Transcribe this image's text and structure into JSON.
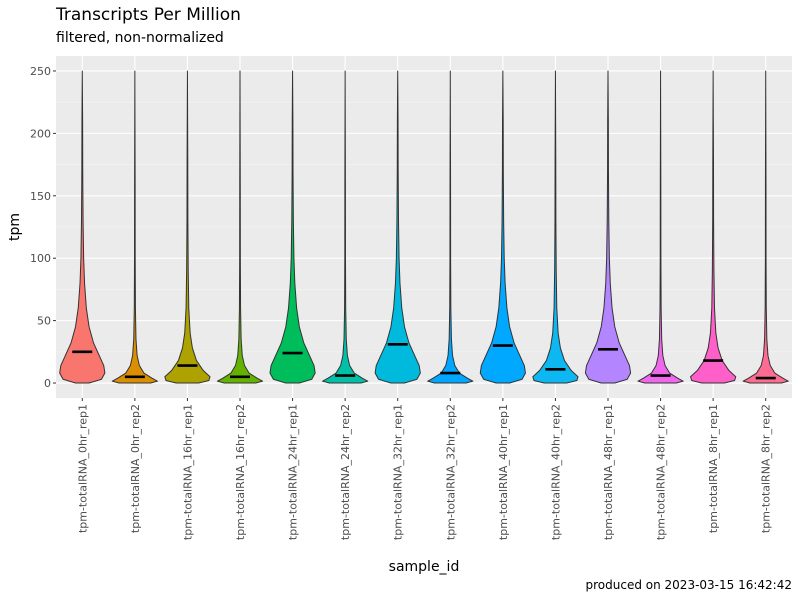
{
  "chart_data": {
    "type": "violin",
    "title": "Transcripts Per Million",
    "subtitle": "filtered, non-normalized",
    "xlabel": "sample_id",
    "ylabel": "tpm",
    "ylim": [
      -12,
      262
    ],
    "yticks": [
      0,
      50,
      100,
      150,
      200,
      250
    ],
    "grid": true,
    "legend": "none",
    "caption": "produced on 2023-03-15 16:42:42",
    "samples": [
      {
        "id": "tpm-totalRNA_0hr_rep1",
        "color": "#F8766D",
        "mean": 25,
        "max": 250,
        "shape": "wide_high"
      },
      {
        "id": "tpm-totalRNA_0hr_rep2",
        "color": "#DB8E00",
        "mean": 5,
        "max": 250,
        "shape": "flat"
      },
      {
        "id": "tpm-totalRNA_16hr_rep1",
        "color": "#AEA200",
        "mean": 14,
        "max": 250,
        "shape": "mid"
      },
      {
        "id": "tpm-totalRNA_16hr_rep2",
        "color": "#64B200",
        "mean": 5,
        "max": 250,
        "shape": "flat"
      },
      {
        "id": "tpm-totalRNA_24hr_rep1",
        "color": "#00BD5C",
        "mean": 24,
        "max": 250,
        "shape": "wide_high"
      },
      {
        "id": "tpm-totalRNA_24hr_rep2",
        "color": "#00C1A7",
        "mean": 6,
        "max": 250,
        "shape": "flat"
      },
      {
        "id": "tpm-totalRNA_32hr_rep1",
        "color": "#00BADE",
        "mean": 31,
        "max": 250,
        "shape": "wide_high"
      },
      {
        "id": "tpm-totalRNA_32hr_rep2",
        "color": "#00A6FF",
        "mean": 8,
        "max": 250,
        "shape": "flat"
      },
      {
        "id": "tpm-totalRNA_40hr_rep1",
        "color": "#00A9FF",
        "mean": 30,
        "max": 250,
        "shape": "wide_high"
      },
      {
        "id": "tpm-totalRNA_40hr_rep2",
        "color": "#0CB7F2",
        "mean": 11,
        "max": 250,
        "shape": "mid"
      },
      {
        "id": "tpm-totalRNA_48hr_rep1",
        "color": "#B385FF",
        "mean": 27,
        "max": 250,
        "shape": "wide_high"
      },
      {
        "id": "tpm-totalRNA_48hr_rep2",
        "color": "#EF67EB",
        "mean": 6,
        "max": 250,
        "shape": "flat"
      },
      {
        "id": "tpm-totalRNA_8hr_rep1",
        "color": "#FF5FC8",
        "mean": 18,
        "max": 250,
        "shape": "mid"
      },
      {
        "id": "tpm-totalRNA_8hr_rep2",
        "color": "#FF6C91",
        "mean": 4,
        "max": 250,
        "shape": "flat"
      }
    ]
  }
}
